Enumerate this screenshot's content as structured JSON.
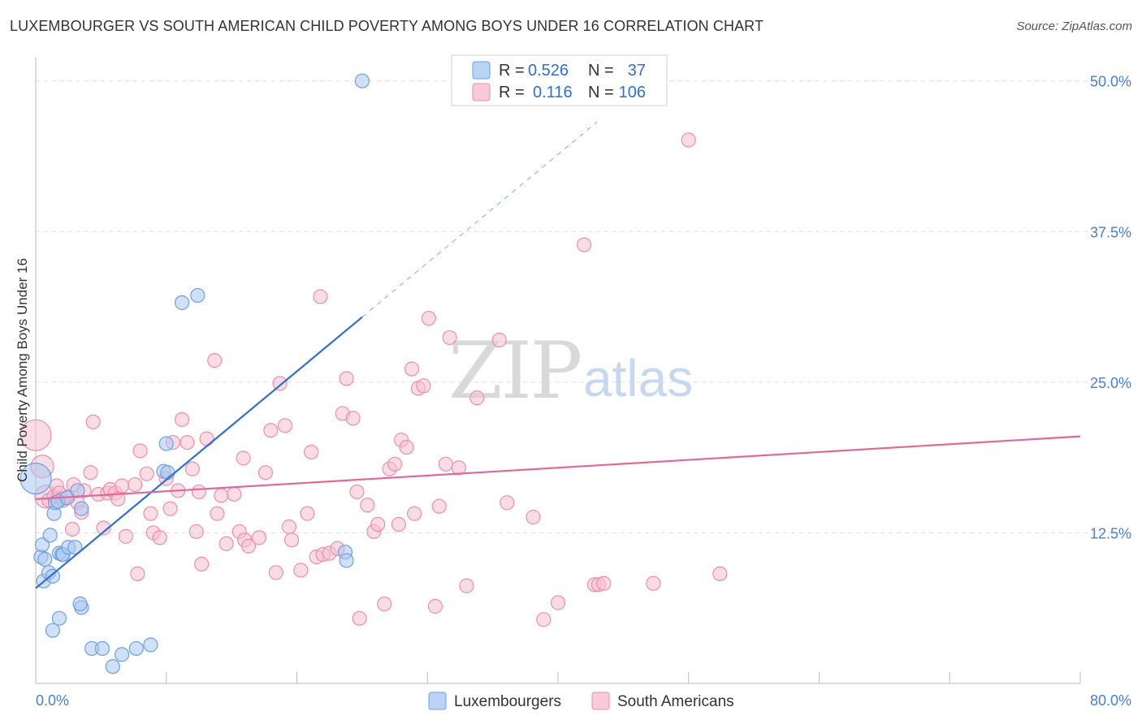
{
  "title": "LUXEMBOURGER VS SOUTH AMERICAN CHILD POVERTY AMONG BOYS UNDER 16 CORRELATION CHART",
  "source": "Source: ZipAtlas.com",
  "watermark": {
    "zip": "ZIP",
    "atlas": "atlas"
  },
  "colors": {
    "blue_fill": "#a9c8f0",
    "blue_stroke": "#6d9fe0",
    "blue_line": "#2f6fd4",
    "pink_fill": "#f6bfd0",
    "pink_stroke": "#ec8fac",
    "pink_line": "#e0689a",
    "grid": "#dddddd",
    "tick_text": "#4a7fd0"
  },
  "legend": {
    "r_label": "R =",
    "n_label": "N =",
    "rows": [
      {
        "r": "0.526",
        "n": "37",
        "series": "Luxembourgers"
      },
      {
        "r": "0.116",
        "n": "106",
        "series": "South Americans"
      }
    ]
  },
  "chart_data": {
    "type": "scatter",
    "title": "LUXEMBOURGER VS SOUTH AMERICAN CHILD POVERTY AMONG BOYS UNDER 16 CORRELATION CHART",
    "xlabel": "",
    "ylabel": "Child Poverty Among Boys Under 16",
    "xlim": [
      0,
      80
    ],
    "ylim": [
      0,
      52
    ],
    "x_tick_labels": [
      "0.0%",
      "80.0%"
    ],
    "y_ticks": [
      12.5,
      25.0,
      37.5,
      50.0
    ],
    "y_tick_labels": [
      "12.5%",
      "25.0%",
      "37.5%",
      "50.0%"
    ],
    "series": [
      {
        "name": "Luxembourgers",
        "color": "blue",
        "r": 0.526,
        "n": 37,
        "trend": {
          "x0": 0.0,
          "y0": 7.9,
          "x1": 25.0,
          "y1": 30.4,
          "dash_x1": 43.0,
          "dash_y1": 46.6
        },
        "points": [
          [
            0.0,
            17.0,
            3
          ],
          [
            0.4,
            10.5,
            1
          ],
          [
            0.5,
            11.5,
            1
          ],
          [
            0.6,
            8.5,
            1
          ],
          [
            0.7,
            10.3,
            1
          ],
          [
            1.0,
            9.2,
            1
          ],
          [
            1.1,
            12.3,
            1
          ],
          [
            1.3,
            8.9,
            1
          ],
          [
            1.4,
            14.1,
            1
          ],
          [
            1.5,
            15.0,
            1
          ],
          [
            1.7,
            15.1,
            1
          ],
          [
            1.8,
            10.8,
            1
          ],
          [
            2.0,
            10.7,
            1
          ],
          [
            2.1,
            10.7,
            1
          ],
          [
            2.4,
            15.4,
            1
          ],
          [
            2.5,
            11.3,
            1
          ],
          [
            3.0,
            11.3,
            1
          ],
          [
            3.2,
            16.0,
            1
          ],
          [
            3.5,
            14.5,
            1
          ],
          [
            3.5,
            6.3,
            1
          ],
          [
            4.3,
            2.9,
            1
          ],
          [
            5.1,
            2.9,
            1
          ],
          [
            5.9,
            1.4,
            1
          ],
          [
            6.6,
            2.4,
            1
          ],
          [
            7.7,
            2.9,
            1
          ],
          [
            8.8,
            3.2,
            1
          ],
          [
            9.8,
            17.6,
            1
          ],
          [
            10.1,
            17.5,
            1
          ],
          [
            10.0,
            19.9,
            1
          ],
          [
            12.4,
            32.2,
            1
          ],
          [
            11.2,
            31.6,
            1
          ],
          [
            23.7,
            10.9,
            1
          ],
          [
            23.8,
            10.2,
            1
          ],
          [
            25.0,
            50.0,
            1
          ],
          [
            1.3,
            4.4,
            1
          ],
          [
            1.8,
            5.4,
            1
          ],
          [
            3.4,
            6.6,
            1
          ]
        ]
      },
      {
        "name": "South Americans",
        "color": "pink",
        "r": 0.116,
        "n": 106,
        "trend": {
          "x0": 0.0,
          "y0": 15.3,
          "x1": 80.0,
          "y1": 20.5
        },
        "points": [
          [
            0.0,
            20.6,
            3
          ],
          [
            0.5,
            18.0,
            2
          ],
          [
            0.8,
            15.5,
            2
          ],
          [
            1.0,
            15.2,
            1
          ],
          [
            1.4,
            15.5,
            1
          ],
          [
            1.6,
            16.4,
            1
          ],
          [
            1.8,
            15.8,
            1
          ],
          [
            2.0,
            15.3,
            1
          ],
          [
            2.1,
            15.2,
            1
          ],
          [
            2.5,
            15.5,
            1
          ],
          [
            2.8,
            12.8,
            1
          ],
          [
            2.9,
            16.5,
            1
          ],
          [
            3.2,
            15.0,
            1
          ],
          [
            3.5,
            14.2,
            1
          ],
          [
            3.7,
            16.0,
            1
          ],
          [
            4.2,
            17.5,
            1
          ],
          [
            4.4,
            21.7,
            1
          ],
          [
            4.8,
            15.7,
            1
          ],
          [
            5.2,
            12.9,
            1
          ],
          [
            5.5,
            15.8,
            1
          ],
          [
            5.7,
            16.1,
            1
          ],
          [
            6.1,
            15.8,
            1
          ],
          [
            6.3,
            15.3,
            1
          ],
          [
            6.6,
            16.4,
            1
          ],
          [
            6.9,
            12.2,
            1
          ],
          [
            7.6,
            16.5,
            1
          ],
          [
            7.8,
            9.1,
            1
          ],
          [
            8.0,
            19.3,
            1
          ],
          [
            8.5,
            17.4,
            1
          ],
          [
            8.8,
            14.1,
            1
          ],
          [
            9.0,
            12.5,
            1
          ],
          [
            9.5,
            12.1,
            1
          ],
          [
            10.0,
            17.0,
            1
          ],
          [
            10.3,
            14.5,
            1
          ],
          [
            10.5,
            20.0,
            1
          ],
          [
            10.9,
            16.0,
            1
          ],
          [
            11.2,
            21.9,
            1
          ],
          [
            11.6,
            20.0,
            1
          ],
          [
            12.0,
            17.8,
            1
          ],
          [
            12.3,
            12.6,
            1
          ],
          [
            12.5,
            15.9,
            1
          ],
          [
            12.7,
            9.9,
            1
          ],
          [
            13.1,
            20.3,
            1
          ],
          [
            13.7,
            26.8,
            1
          ],
          [
            13.9,
            14.1,
            1
          ],
          [
            14.2,
            15.6,
            1
          ],
          [
            14.6,
            11.6,
            1
          ],
          [
            15.2,
            15.7,
            1
          ],
          [
            15.6,
            12.6,
            1
          ],
          [
            15.9,
            18.7,
            1
          ],
          [
            16.0,
            11.9,
            1
          ],
          [
            16.3,
            11.4,
            1
          ],
          [
            17.1,
            12.1,
            1
          ],
          [
            17.6,
            17.5,
            1
          ],
          [
            18.0,
            21.0,
            1
          ],
          [
            18.4,
            9.2,
            1
          ],
          [
            18.7,
            24.9,
            1
          ],
          [
            19.1,
            21.4,
            1
          ],
          [
            19.4,
            13.0,
            1
          ],
          [
            19.6,
            11.9,
            1
          ],
          [
            20.3,
            9.4,
            1
          ],
          [
            20.8,
            14.1,
            1
          ],
          [
            21.1,
            19.2,
            1
          ],
          [
            21.5,
            10.5,
            1
          ],
          [
            21.8,
            32.1,
            1
          ],
          [
            22.0,
            10.7,
            1
          ],
          [
            22.5,
            10.8,
            1
          ],
          [
            23.1,
            11.2,
            1
          ],
          [
            23.5,
            22.4,
            1
          ],
          [
            23.8,
            25.3,
            1
          ],
          [
            24.3,
            22.0,
            1
          ],
          [
            24.6,
            15.9,
            1
          ],
          [
            24.8,
            5.4,
            1
          ],
          [
            25.4,
            14.8,
            1
          ],
          [
            25.9,
            12.6,
            1
          ],
          [
            26.2,
            13.2,
            1
          ],
          [
            26.7,
            6.6,
            1
          ],
          [
            27.1,
            17.8,
            1
          ],
          [
            27.5,
            18.2,
            1
          ],
          [
            27.8,
            13.2,
            1
          ],
          [
            28.0,
            20.2,
            1
          ],
          [
            28.4,
            19.6,
            1
          ],
          [
            28.8,
            26.1,
            1
          ],
          [
            29.0,
            14.1,
            1
          ],
          [
            29.3,
            24.5,
            1
          ],
          [
            29.7,
            24.7,
            1
          ],
          [
            30.1,
            30.3,
            1
          ],
          [
            30.6,
            6.4,
            1
          ],
          [
            30.9,
            14.7,
            1
          ],
          [
            31.4,
            18.2,
            1
          ],
          [
            31.7,
            28.7,
            1
          ],
          [
            32.4,
            17.9,
            1
          ],
          [
            33.0,
            8.1,
            1
          ],
          [
            33.8,
            23.7,
            1
          ],
          [
            35.5,
            28.5,
            1
          ],
          [
            36.1,
            15.0,
            1
          ],
          [
            38.1,
            13.8,
            1
          ],
          [
            38.9,
            5.3,
            1
          ],
          [
            40.0,
            6.7,
            1
          ],
          [
            42.0,
            36.4,
            1
          ],
          [
            42.8,
            8.2,
            1
          ],
          [
            43.1,
            8.2,
            1
          ],
          [
            43.5,
            8.3,
            1
          ],
          [
            47.3,
            8.3,
            1
          ],
          [
            50.0,
            45.1,
            1
          ],
          [
            52.4,
            9.1,
            1
          ]
        ]
      }
    ]
  }
}
